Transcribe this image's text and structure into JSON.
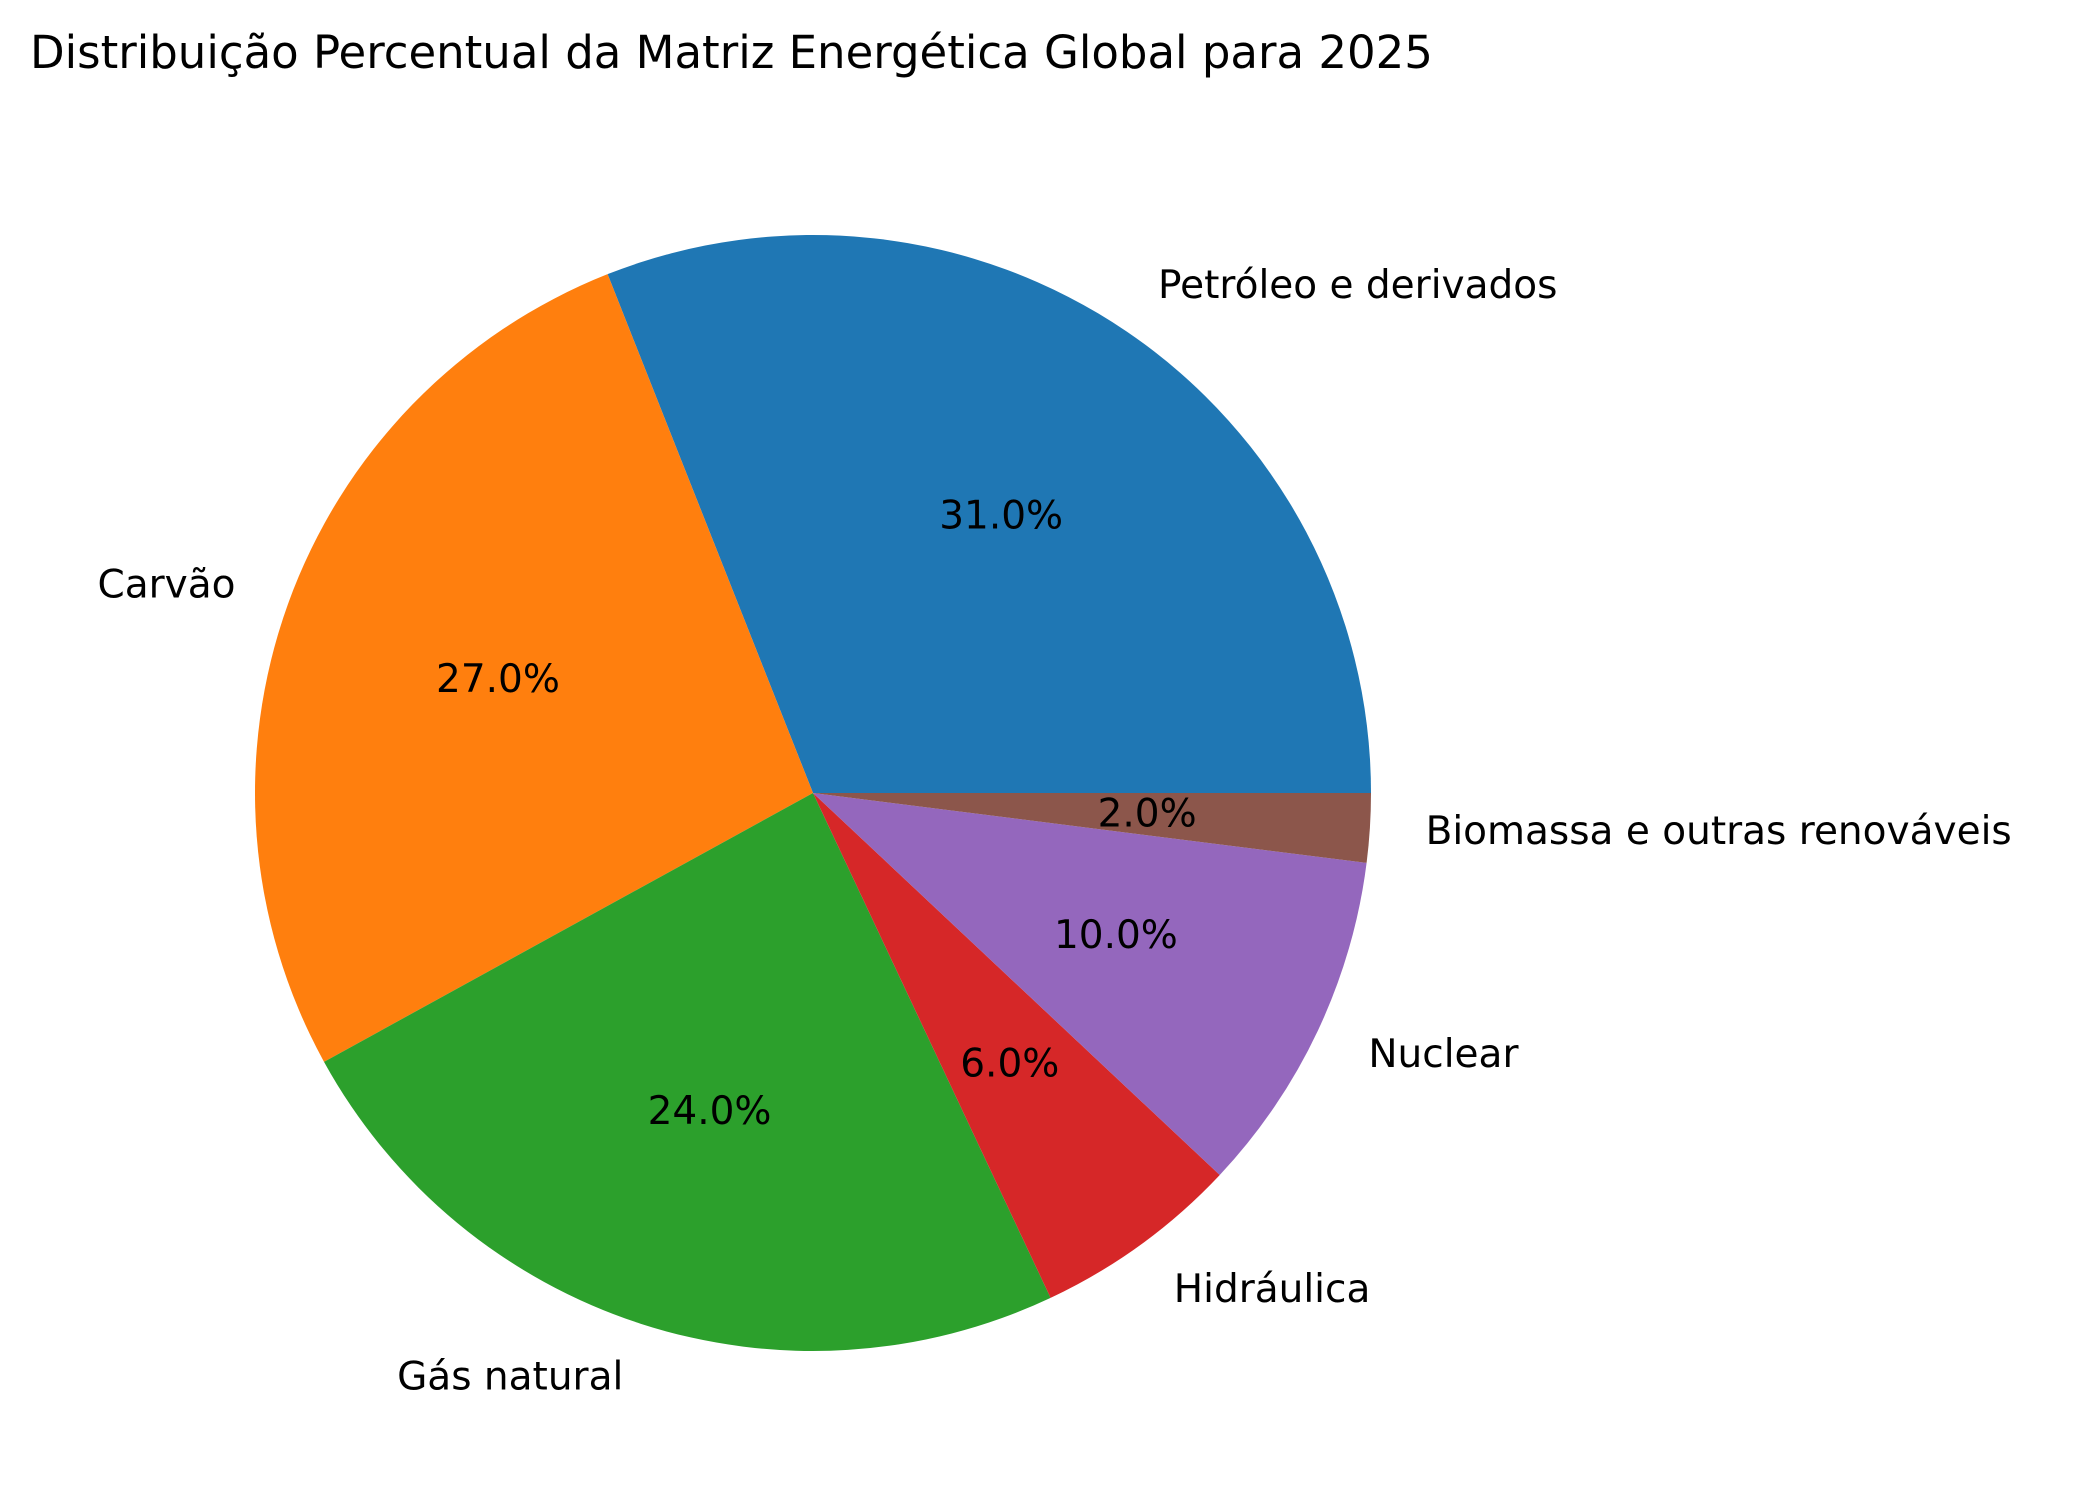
{
  "chart_data": {
    "type": "pie",
    "title": "Distribuição Percentual da Matriz Energética Global para 2025",
    "start_angle_deg": 0,
    "direction": "counterclockwise",
    "slices": [
      {
        "label": "Petróleo e derivados",
        "value": 31.0,
        "pct_label": "31.0%",
        "color": "#1f77b4"
      },
      {
        "label": "Carvão",
        "value": 27.0,
        "pct_label": "27.0%",
        "color": "#ff7f0e"
      },
      {
        "label": "Gás natural",
        "value": 24.0,
        "pct_label": "24.0%",
        "color": "#2ca02c"
      },
      {
        "label": "Hidráulica",
        "value": 6.0,
        "pct_label": "6.0%",
        "color": "#d62728"
      },
      {
        "label": "Nuclear",
        "value": 10.0,
        "pct_label": "10.0%",
        "color": "#9467bd"
      },
      {
        "label": "Biomassa e outras renováveis",
        "value": 2.0,
        "pct_label": "2.0%",
        "color": "#8c564b"
      }
    ]
  }
}
